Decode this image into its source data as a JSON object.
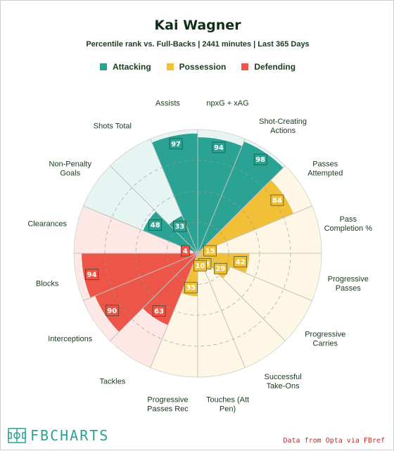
{
  "header": {
    "title": "Kai Wagner",
    "subtitle": "Percentile rank vs. Full-Backs | 2441 minutes | Last 365 Days"
  },
  "legend": [
    {
      "label": "Attacking",
      "color": "#2aa394"
    },
    {
      "label": "Possession",
      "color": "#f2c037"
    },
    {
      "label": "Defending",
      "color": "#ec5548"
    }
  ],
  "chart_data": {
    "type": "polar-bar",
    "title": "Kai Wagner",
    "subtitle": "Percentile rank vs. Full-Backs | 2441 minutes | Last 365 Days",
    "range": [
      0,
      100
    ],
    "categories": [
      {
        "label": "npxG + xAG",
        "group": "Attacking",
        "value": 94
      },
      {
        "label": "Shot-Creating Actions",
        "group": "Attacking",
        "value": 98
      },
      {
        "label": "Passes Attempted",
        "group": "Possession",
        "value": 84
      },
      {
        "label": "Pass Completion %",
        "group": "Possession",
        "value": 15
      },
      {
        "label": "Progressive Passes",
        "group": "Possession",
        "value": 42
      },
      {
        "label": "Progressive Carries",
        "group": "Possession",
        "value": 29
      },
      {
        "label": "Successful Take-Ons",
        "group": "Possession",
        "value": 13
      },
      {
        "label": "Touches (Att Pen)",
        "group": "Possession",
        "value": 10
      },
      {
        "label": "Progressive Passes Rec",
        "group": "Possession",
        "value": 35
      },
      {
        "label": "Tackles",
        "group": "Defending",
        "value": 63
      },
      {
        "label": "Interceptions",
        "group": "Defending",
        "value": 90
      },
      {
        "label": "Blocks",
        "group": "Defending",
        "value": 94
      },
      {
        "label": "Clearances",
        "group": "Defending",
        "value": 4
      },
      {
        "label": "Non-Penalty Goals",
        "group": "Attacking",
        "value": 48
      },
      {
        "label": "Shots Total",
        "group": "Attacking",
        "value": 33
      },
      {
        "label": "Assists",
        "group": "Attacking",
        "value": 97
      }
    ],
    "group_colors": {
      "Attacking": "#2aa394",
      "Possession": "#f2c037",
      "Defending": "#ec5548"
    },
    "background_colors": {
      "Attacking": "#e6f5f2",
      "Possession": "#fef7e6",
      "Defending": "#fde8e6"
    }
  },
  "footer": {
    "logo_text": "FBCHARTS",
    "credit": "Data from Opta via FBref"
  }
}
